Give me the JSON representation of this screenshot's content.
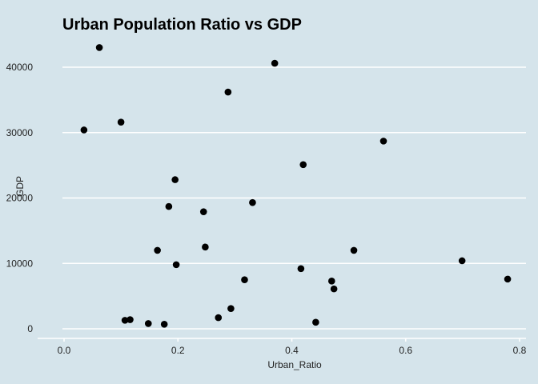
{
  "chart_data": {
    "type": "scatter",
    "title": "Urban Population Ratio vs GDP",
    "xlabel": "Urban_Ratio",
    "ylabel": "GDP",
    "xlim": [
      0.0,
      0.8
    ],
    "ylim": [
      0,
      40000
    ],
    "x_ticks": [
      0.0,
      0.2,
      0.4,
      0.6,
      0.8
    ],
    "x_tick_labels": [
      "0.0",
      "0.2",
      "0.4",
      "0.6",
      "0.8"
    ],
    "y_ticks": [
      0,
      10000,
      20000,
      30000,
      40000
    ],
    "y_tick_labels": [
      "0",
      "10000",
      "20000",
      "30000",
      "40000"
    ],
    "grid": "horizontal",
    "point_color": "#000000",
    "background": "#d5e4eb",
    "points": [
      {
        "x": 0.035,
        "y": 30400
      },
      {
        "x": 0.062,
        "y": 43000
      },
      {
        "x": 0.1,
        "y": 31600
      },
      {
        "x": 0.107,
        "y": 1300
      },
      {
        "x": 0.116,
        "y": 1400
      },
      {
        "x": 0.148,
        "y": 800
      },
      {
        "x": 0.164,
        "y": 12000
      },
      {
        "x": 0.176,
        "y": 700
      },
      {
        "x": 0.184,
        "y": 18700
      },
      {
        "x": 0.195,
        "y": 22800
      },
      {
        "x": 0.197,
        "y": 9800
      },
      {
        "x": 0.245,
        "y": 17900
      },
      {
        "x": 0.248,
        "y": 12500
      },
      {
        "x": 0.271,
        "y": 1700
      },
      {
        "x": 0.288,
        "y": 36200
      },
      {
        "x": 0.293,
        "y": 3100
      },
      {
        "x": 0.317,
        "y": 7500
      },
      {
        "x": 0.331,
        "y": 19300
      },
      {
        "x": 0.37,
        "y": 40600
      },
      {
        "x": 0.416,
        "y": 9200
      },
      {
        "x": 0.42,
        "y": 25100
      },
      {
        "x": 0.442,
        "y": 1000
      },
      {
        "x": 0.47,
        "y": 7300
      },
      {
        "x": 0.474,
        "y": 6100
      },
      {
        "x": 0.509,
        "y": 12000
      },
      {
        "x": 0.561,
        "y": 28700
      },
      {
        "x": 0.699,
        "y": 10400
      },
      {
        "x": 0.779,
        "y": 7600
      }
    ]
  }
}
